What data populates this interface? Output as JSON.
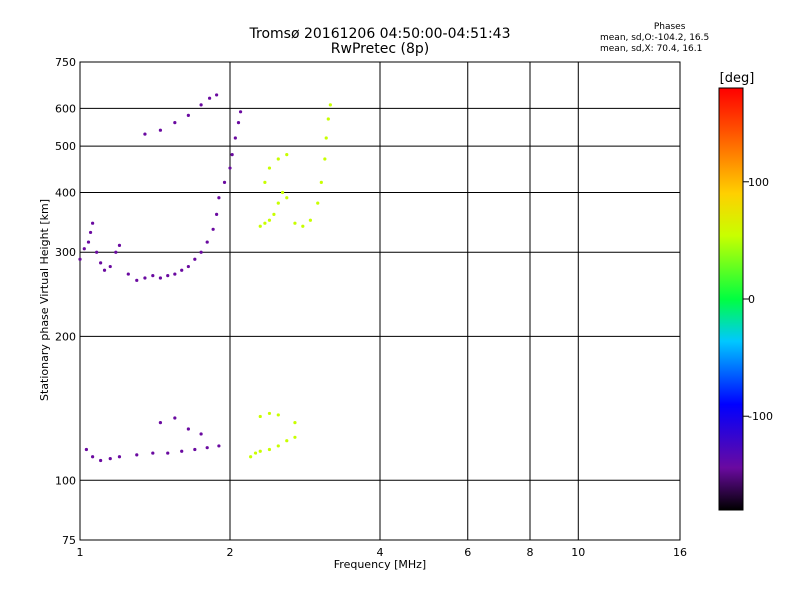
{
  "header": {
    "title": "Tromsø 20161206 04:50:00-04:51:43",
    "subtitle": "RwPretec (8p)"
  },
  "phases": {
    "heading": "Phases",
    "line1": "mean, sd,O:-104.2, 16.5",
    "line2": "mean, sd,X:  70.4, 16.1"
  },
  "colorbar": {
    "unit": "[deg]",
    "ticks": [
      {
        "value": 100,
        "label": "100"
      },
      {
        "value": 0,
        "label": "0"
      },
      {
        "value": -100,
        "label": "-100"
      }
    ],
    "range": [
      -180,
      180
    ]
  },
  "chart_data": {
    "type": "scatter",
    "title": "Tromsø 20161206 04:50:00-04:51:43",
    "subtitle": "RwPretec (8p)",
    "xlabel": "Frequency [MHz]",
    "ylabel": "Stationary phase Virtual Height [km]",
    "x_scale": "log",
    "y_scale": "log",
    "xlim": [
      1,
      16
    ],
    "ylim": [
      75,
      750
    ],
    "x_ticks": [
      1,
      2,
      4,
      6,
      8,
      10,
      16
    ],
    "y_ticks": [
      75,
      100,
      200,
      300,
      400,
      500,
      600,
      750
    ],
    "color_variable": "phase [deg]",
    "series": [
      {
        "name": "O",
        "color_phase": -104.2,
        "points": [
          [
            1.0,
            290
          ],
          [
            1.02,
            305
          ],
          [
            1.04,
            315
          ],
          [
            1.05,
            330
          ],
          [
            1.06,
            345
          ],
          [
            1.08,
            300
          ],
          [
            1.1,
            285
          ],
          [
            1.12,
            275
          ],
          [
            1.15,
            280
          ],
          [
            1.18,
            300
          ],
          [
            1.2,
            310
          ],
          [
            1.25,
            270
          ],
          [
            1.3,
            262
          ],
          [
            1.35,
            265
          ],
          [
            1.4,
            268
          ],
          [
            1.45,
            265
          ],
          [
            1.5,
            268
          ],
          [
            1.55,
            270
          ],
          [
            1.6,
            275
          ],
          [
            1.65,
            280
          ],
          [
            1.7,
            290
          ],
          [
            1.75,
            300
          ],
          [
            1.8,
            315
          ],
          [
            1.85,
            335
          ],
          [
            1.88,
            360
          ],
          [
            1.9,
            390
          ],
          [
            1.95,
            420
          ],
          [
            2.0,
            450
          ],
          [
            2.02,
            480
          ],
          [
            2.05,
            520
          ],
          [
            2.08,
            560
          ],
          [
            2.1,
            590
          ],
          [
            1.35,
            530
          ],
          [
            1.45,
            540
          ],
          [
            1.55,
            560
          ],
          [
            1.65,
            580
          ],
          [
            1.75,
            610
          ],
          [
            1.82,
            630
          ],
          [
            1.88,
            640
          ],
          [
            1.03,
            116
          ],
          [
            1.06,
            112
          ],
          [
            1.1,
            110
          ],
          [
            1.15,
            111
          ],
          [
            1.2,
            112
          ],
          [
            1.3,
            113
          ],
          [
            1.4,
            114
          ],
          [
            1.5,
            114
          ],
          [
            1.6,
            115
          ],
          [
            1.7,
            116
          ],
          [
            1.8,
            117
          ],
          [
            1.9,
            118
          ],
          [
            1.65,
            128
          ],
          [
            1.75,
            125
          ],
          [
            1.55,
            135
          ],
          [
            1.45,
            132
          ]
        ]
      },
      {
        "name": "X",
        "color_phase": 70.4,
        "points": [
          [
            2.3,
            340
          ],
          [
            2.35,
            345
          ],
          [
            2.4,
            350
          ],
          [
            2.45,
            360
          ],
          [
            2.5,
            380
          ],
          [
            2.55,
            400
          ],
          [
            2.6,
            390
          ],
          [
            2.7,
            345
          ],
          [
            2.8,
            340
          ],
          [
            2.9,
            350
          ],
          [
            3.0,
            380
          ],
          [
            3.05,
            420
          ],
          [
            3.1,
            470
          ],
          [
            3.12,
            520
          ],
          [
            3.15,
            570
          ],
          [
            3.18,
            610
          ],
          [
            2.35,
            420
          ],
          [
            2.4,
            450
          ],
          [
            2.5,
            470
          ],
          [
            2.6,
            480
          ],
          [
            2.2,
            112
          ],
          [
            2.25,
            114
          ],
          [
            2.3,
            115
          ],
          [
            2.4,
            116
          ],
          [
            2.5,
            118
          ],
          [
            2.6,
            121
          ],
          [
            2.7,
            123
          ],
          [
            2.3,
            136
          ],
          [
            2.4,
            138
          ],
          [
            2.5,
            137
          ],
          [
            2.7,
            132
          ]
        ]
      }
    ]
  }
}
